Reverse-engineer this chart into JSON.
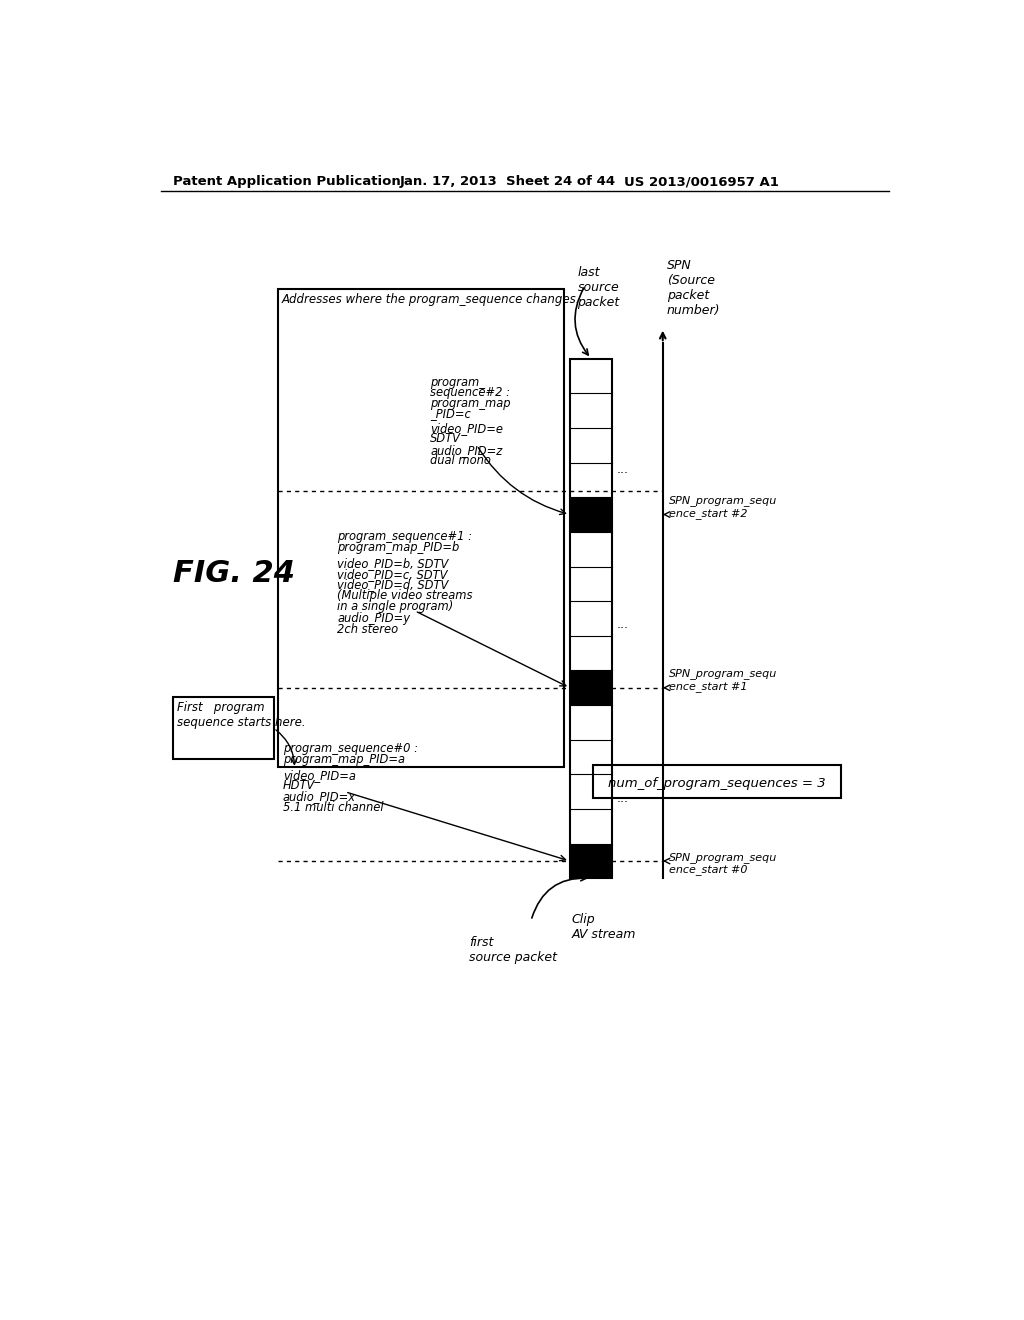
{
  "header_left": "Patent Application Publication",
  "header_mid": "Jan. 17, 2013  Sheet 24 of 44",
  "header_right": "US 2013/0016957 A1",
  "fig_label": "FIG. 24",
  "bg_color": "#ffffff",
  "addresses_label": "Addresses where the program_sequence changes.",
  "first_seq_label": "First   program\nsequence starts here.",
  "seq0_line1": "program_sequence#0 :",
  "seq0_line2": "program_map_PID=a",
  "seq0_line3": "video_PID=a",
  "seq0_line4": "HDTV",
  "seq0_line5": "audio_PID=x",
  "seq0_line6": "5.1 multi channel",
  "seq1_line1": "program_sequence#1 :",
  "seq1_line2": "program_map_PID=b",
  "seq1_line3": "video_PID=b, SDTV",
  "seq1_line4": "video_PID=c, SDTV",
  "seq1_line5": "video_PID=d, SDTV",
  "seq1_line6": "(Multiple video streams",
  "seq1_line7": "in a single program)",
  "seq1_line8": "audio_PID=y",
  "seq1_line9": "2ch stereo",
  "seq2_line1": "program_",
  "seq2_line2": "sequence#2 :",
  "seq2_line3": "program_map",
  "seq2_line4": "_PID=c",
  "seq2_line5": "video_PID=e",
  "seq2_line6": "SDTV",
  "seq2_line7": "audio_PID=z",
  "seq2_line8": "dual mono",
  "last_source_label": "last\nsource\npacket",
  "first_source_label": "first\nsource packet",
  "clip_av_label": "Clip\nAV stream",
  "spn_label": "SPN\n(Source\npacket\nnumber)",
  "spn0_label": "SPN_program_sequ\nence_start #0",
  "spn1_label": "SPN_program_sequ\nence_start #1",
  "spn2_label": "SPN_program_sequ\nence_start #2",
  "num_sequences_label": "num_of_program_sequences = 3"
}
